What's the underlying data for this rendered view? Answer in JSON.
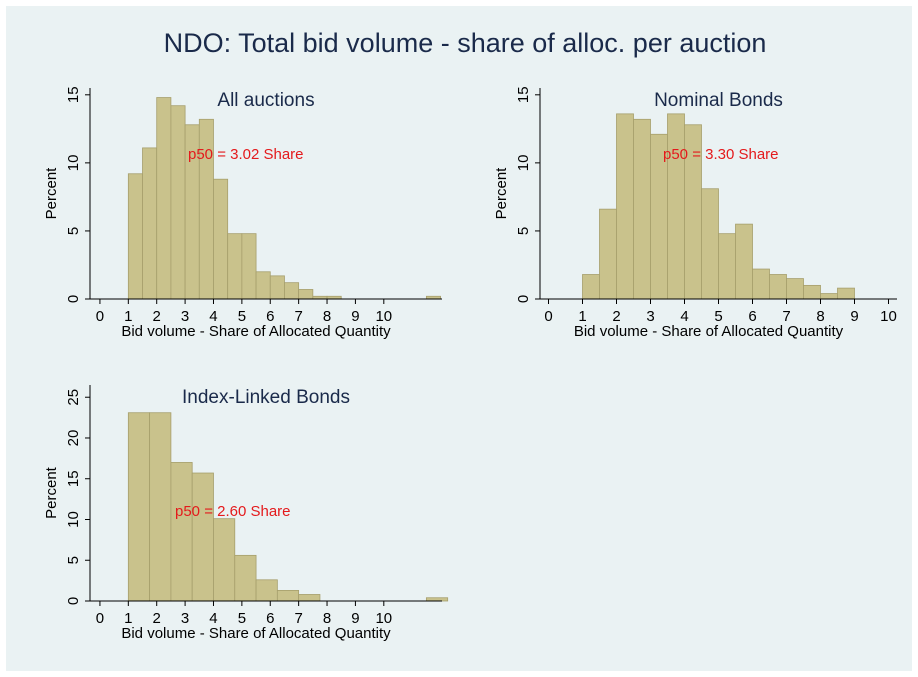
{
  "title": "NDO: Total bid volume - share of alloc. per auction",
  "chart_data": [
    {
      "type": "histogram",
      "title": "All auctions",
      "x_label": "Bid volume - Share of Allocated Quantity",
      "y_label": "Percent",
      "annotation": "p50 = 3.02 Share",
      "color": "#c9c28c",
      "bins": [
        1,
        1.5,
        2,
        2.5,
        3,
        3.5,
        4,
        4.5,
        5,
        5.5,
        6,
        6.5,
        7,
        7.5,
        8,
        8.5,
        9,
        9.5,
        10,
        10.5,
        11,
        11.5,
        12
      ],
      "values": [
        9.2,
        11.1,
        14.8,
        14.2,
        12.8,
        13.2,
        8.8,
        4.8,
        4.8,
        2.0,
        1.7,
        1.2,
        0.7,
        0.2,
        0.2,
        0,
        0,
        0,
        0,
        0,
        0,
        0.2
      ],
      "xlim": [
        -0.35,
        12.05
      ],
      "ylim": [
        0,
        15.5
      ],
      "xticks": [
        0,
        1,
        2,
        3,
        4,
        5,
        6,
        7,
        8,
        9,
        10
      ],
      "yticks": [
        0,
        5,
        10,
        15
      ]
    },
    {
      "type": "histogram",
      "title": "Nominal Bonds",
      "x_label": "Bid volume - Share of Allocated Quantity",
      "y_label": "Percent",
      "annotation": "p50 = 3.30 Share",
      "color": "#c9c28c",
      "bins": [
        1,
        1.5,
        2,
        2.5,
        3,
        3.5,
        4,
        4.5,
        5,
        5.5,
        6,
        6.5,
        7,
        7.5,
        8,
        8.5,
        9
      ],
      "values": [
        1.8,
        6.6,
        13.6,
        13.2,
        12.1,
        13.6,
        12.8,
        8.1,
        4.8,
        5.5,
        2.2,
        1.8,
        1.5,
        1.0,
        0.4,
        0.8
      ],
      "xlim": [
        -0.25,
        10.25
      ],
      "ylim": [
        0,
        15.5
      ],
      "xticks": [
        0,
        1,
        2,
        3,
        4,
        5,
        6,
        7,
        8,
        9,
        10
      ],
      "yticks": [
        0,
        5,
        10,
        15
      ]
    },
    {
      "type": "histogram",
      "title": "Index-Linked Bonds",
      "x_label": "Bid volume - Share of Allocated Quantity",
      "y_label": "Percent",
      "annotation": "p50 = 2.60 Share",
      "color": "#c9c28c",
      "bins": [
        1,
        1.75,
        2.5,
        3.25,
        4,
        4.75,
        5.5,
        6.25,
        7,
        7.75,
        8.5,
        9.25,
        10,
        10.75,
        11.5,
        12.25
      ],
      "values": [
        23.1,
        23.1,
        17.0,
        15.7,
        10.1,
        5.6,
        2.6,
        1.3,
        0.8,
        0,
        0,
        0,
        0,
        0,
        0.4
      ],
      "xlim": [
        -0.35,
        12.05
      ],
      "ylim": [
        0,
        26.5
      ],
      "xticks": [
        0,
        1,
        2,
        3,
        4,
        5,
        6,
        7,
        8,
        9,
        10
      ],
      "yticks": [
        0,
        5,
        10,
        15,
        20,
        25
      ]
    }
  ]
}
